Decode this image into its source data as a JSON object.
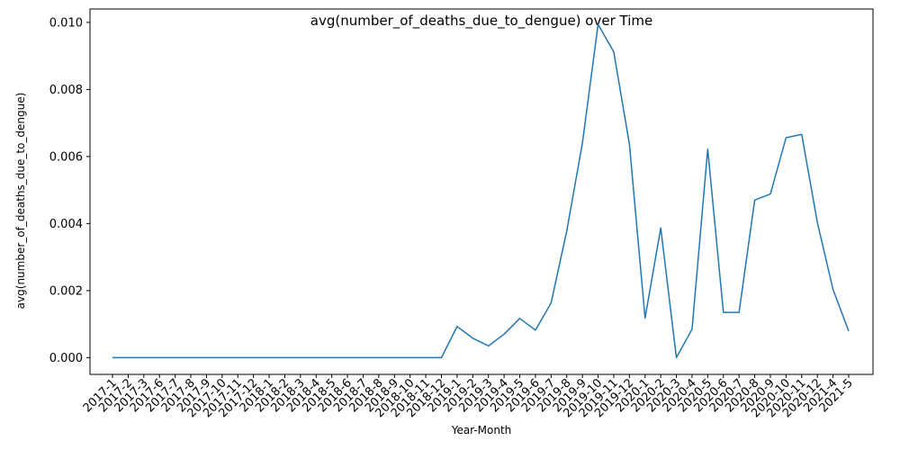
{
  "chart_data": {
    "type": "line",
    "title": "avg(number_of_deaths_due_to_dengue) over Time",
    "xlabel": "Year-Month",
    "ylabel": "avg(number_of_deaths_due_to_dengue)",
    "ylim": [
      -0.0005,
      0.0104
    ],
    "yticks": [
      "0.000",
      "0.002",
      "0.004",
      "0.006",
      "0.008",
      "0.010"
    ],
    "grid": false,
    "line_color": "#1f77b4",
    "categories": [
      "2017-1",
      "2017-2",
      "2017-3",
      "2017-6",
      "2017-7",
      "2017-8",
      "2017-9",
      "2017-10",
      "2017-11",
      "2017-12",
      "2018-1",
      "2018-2",
      "2018-3",
      "2018-4",
      "2018-5",
      "2018-6",
      "2018-7",
      "2018-8",
      "2018-9",
      "2018-10",
      "2018-11",
      "2018-12",
      "2019-1",
      "2019-2",
      "2019-3",
      "2019-4",
      "2019-5",
      "2019-6",
      "2019-7",
      "2019-8",
      "2019-9",
      "2019-10",
      "2019-11",
      "2019-12",
      "2020-1",
      "2020-2",
      "2020-3",
      "2020-4",
      "2020-5",
      "2020-6",
      "2020-7",
      "2020-8",
      "2020-9",
      "2020-10",
      "2020-11",
      "2020-12",
      "2021-4",
      "2021-5"
    ],
    "values": [
      0,
      0,
      0,
      0,
      0,
      0,
      0,
      0,
      0,
      0,
      0,
      0,
      0,
      0,
      0,
      0,
      0,
      0,
      0,
      0,
      0,
      0,
      0.00093,
      0.00058,
      0.00035,
      0.0007,
      0.00117,
      0.00082,
      0.00163,
      0.00378,
      0.0064,
      0.00994,
      0.00912,
      0.00637,
      0.00118,
      0.00387,
      0,
      0.00085,
      0.00622,
      0.00135,
      0.00135,
      0.0047,
      0.00488,
      0.00656,
      0.00666,
      0.00403,
      0.00203,
      0.00079
    ]
  }
}
